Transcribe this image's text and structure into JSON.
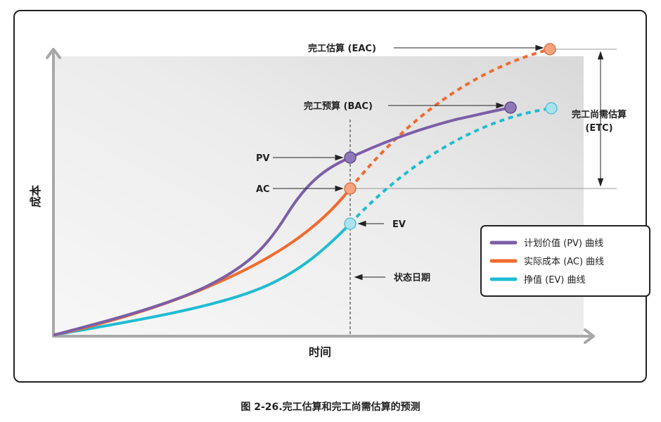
{
  "labels": {
    "eac": "完工估算 (EAC)",
    "bac": "完工预算 (BAC)",
    "etc_line1": "完工尚需估算",
    "etc_line2": "(ETC)",
    "pv": "PV",
    "ac": "AC",
    "ev": "EV",
    "status_date": "状态日期"
  },
  "axes": {
    "y_label": "成本",
    "x_label": "时间"
  },
  "legend": {
    "items": [
      {
        "label": "计划价值 (PV) 曲线",
        "color": "#7b5ea7"
      },
      {
        "label": "实际成本 (AC) 曲线",
        "color": "#f26a2e"
      },
      {
        "label": "挣值 (EV) 曲线",
        "color": "#1fbcd2"
      }
    ]
  },
  "caption": "图 2-26.完工估算和完工尚需估算的预测",
  "colors": {
    "pv": "#7b5ea7",
    "ac": "#f26a2e",
    "ev": "#1fbcd2",
    "pv_marker": "#8e78b8",
    "ac_marker": "#f5a47f",
    "ev_marker": "#a9e3ee"
  }
}
